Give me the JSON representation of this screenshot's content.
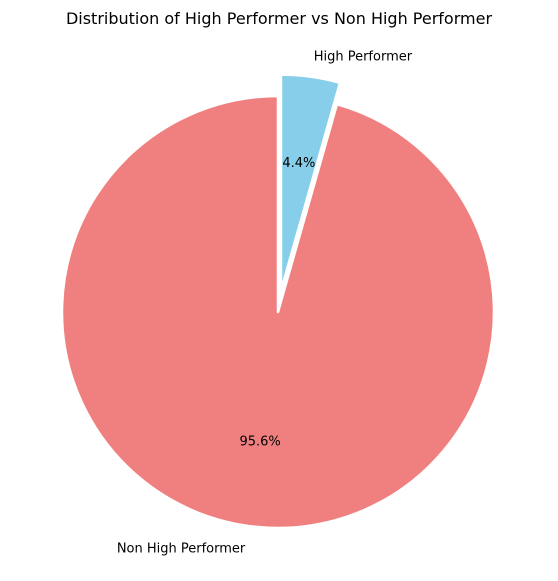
{
  "chart_data": {
    "type": "pie",
    "title": "Distribution of High Performer vs Non High Performer",
    "slices": [
      {
        "label": "High Performer",
        "value": 4.4,
        "pct_label": "4.4%",
        "color": "#87CEEB",
        "exploded": true
      },
      {
        "label": "Non High Performer",
        "value": 95.6,
        "pct_label": "95.6%",
        "color": "#F08080",
        "exploded": false
      }
    ],
    "start_angle_deg": 90,
    "direction": "clockwise",
    "legend": "none"
  }
}
